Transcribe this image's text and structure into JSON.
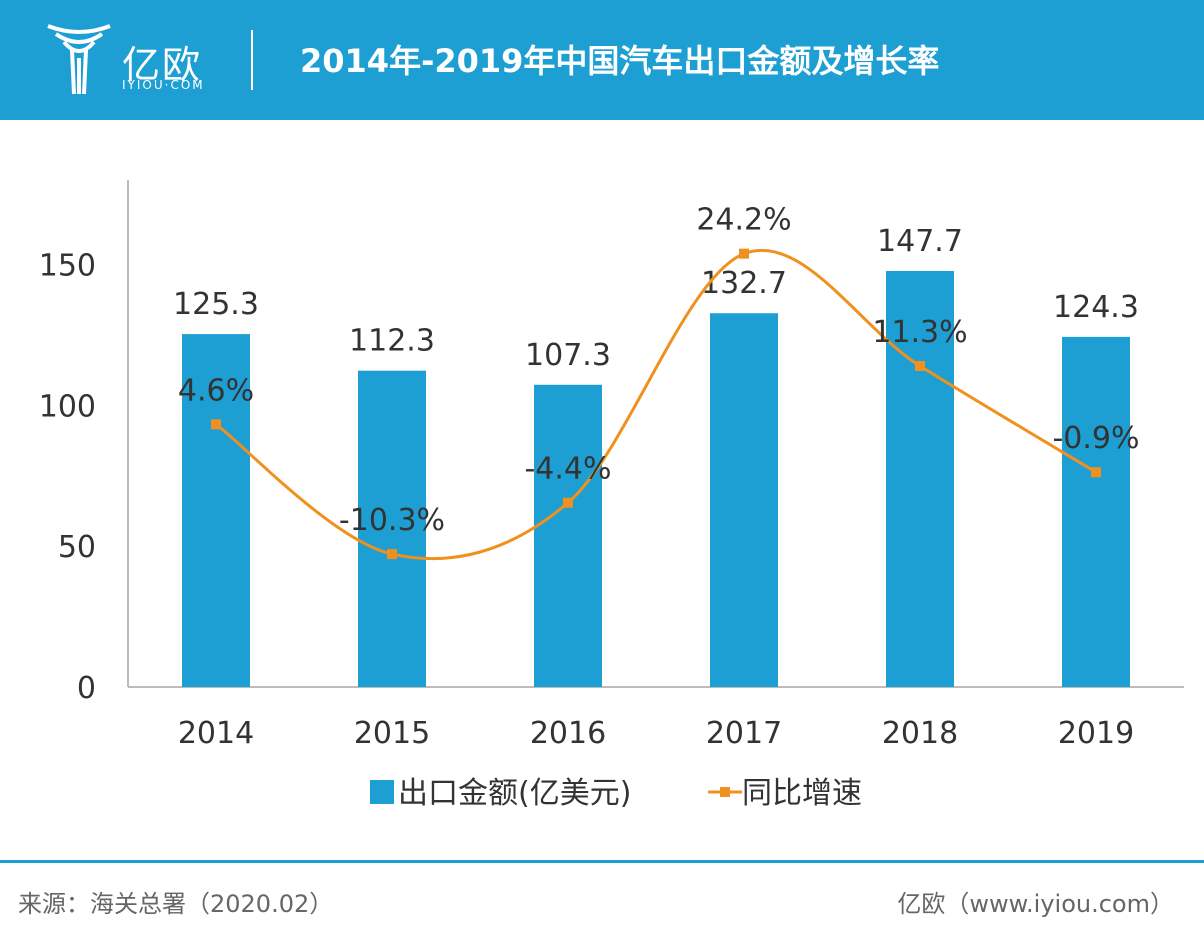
{
  "header": {
    "logo_cn": "亿欧",
    "logo_en": "IYIOU·COM",
    "title": "2014年-2019年中国汽车出口金额及增长率"
  },
  "chart_data": {
    "type": "bar",
    "categories": [
      "2014",
      "2015",
      "2016",
      "2017",
      "2018",
      "2019"
    ],
    "series": [
      {
        "name": "出口金额(亿美元)",
        "type": "bar",
        "values": [
          125.3,
          112.3,
          107.3,
          132.7,
          147.7,
          124.3
        ],
        "labels": [
          "125.3",
          "112.3",
          "107.3",
          "132.7",
          "147.7",
          "124.3"
        ],
        "color": "#1e9fd3"
      },
      {
        "name": "同比增速",
        "type": "line",
        "smooth": true,
        "values": [
          4.6,
          -10.3,
          -4.4,
          24.2,
          11.3,
          -0.9
        ],
        "labels": [
          "4.6%",
          "-10.3%",
          "-4.4%",
          "24.2%",
          "11.3%",
          "-0.9%"
        ],
        "color": "#f0901e",
        "axis": "secondary (hidden)"
      }
    ],
    "ylim": [
      0,
      180
    ],
    "yticks": [
      "0",
      "50",
      "100",
      "150"
    ],
    "grid": false,
    "legend": "bottom"
  },
  "footer": {
    "source": "来源：海关总署（2020.02）",
    "credit": "亿欧（www.iyiou.com）"
  }
}
